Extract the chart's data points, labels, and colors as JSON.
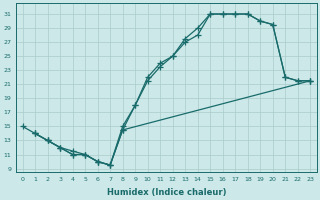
{
  "xlabel": "Humidex (Indice chaleur)",
  "bg_color": "#cce8e8",
  "grid_color": "#aacccc",
  "line_color": "#1a6b6b",
  "xlim": [
    -0.5,
    23.5
  ],
  "ylim": [
    8.5,
    32.5
  ],
  "xticks": [
    0,
    1,
    2,
    3,
    4,
    5,
    6,
    7,
    8,
    9,
    10,
    11,
    12,
    13,
    14,
    15,
    16,
    17,
    18,
    19,
    20,
    21,
    22,
    23
  ],
  "yticks": [
    9,
    11,
    13,
    15,
    17,
    19,
    21,
    23,
    25,
    27,
    29,
    31
  ],
  "line1_x": [
    1,
    2,
    3,
    4,
    5,
    6,
    7,
    8,
    9,
    10,
    11,
    12,
    13,
    14,
    15,
    16,
    17,
    18,
    19,
    20,
    21,
    22,
    23
  ],
  "line1_y": [
    14,
    13,
    12,
    11,
    11,
    10,
    9.5,
    14.5,
    18,
    21.5,
    23.5,
    25,
    27.5,
    29,
    31,
    31,
    31,
    31,
    30,
    29.5,
    22,
    21.5,
    21.5
  ],
  "line2_x": [
    1,
    2,
    3,
    4,
    5,
    6,
    7,
    8,
    9,
    10,
    11,
    12,
    13,
    14,
    15,
    16,
    17,
    18,
    19,
    20,
    21,
    22,
    23
  ],
  "line2_y": [
    14,
    13,
    12,
    11,
    11,
    10,
    9.5,
    15,
    18,
    22,
    24,
    25,
    27,
    28,
    31,
    31,
    31,
    31,
    30,
    29.5,
    22,
    21.5,
    21.5
  ],
  "line3_x": [
    0,
    1,
    2,
    3,
    4,
    5,
    6,
    7,
    8,
    23
  ],
  "line3_y": [
    15,
    14,
    13,
    12,
    11.5,
    11,
    10,
    9.5,
    14.5,
    21.5
  ]
}
